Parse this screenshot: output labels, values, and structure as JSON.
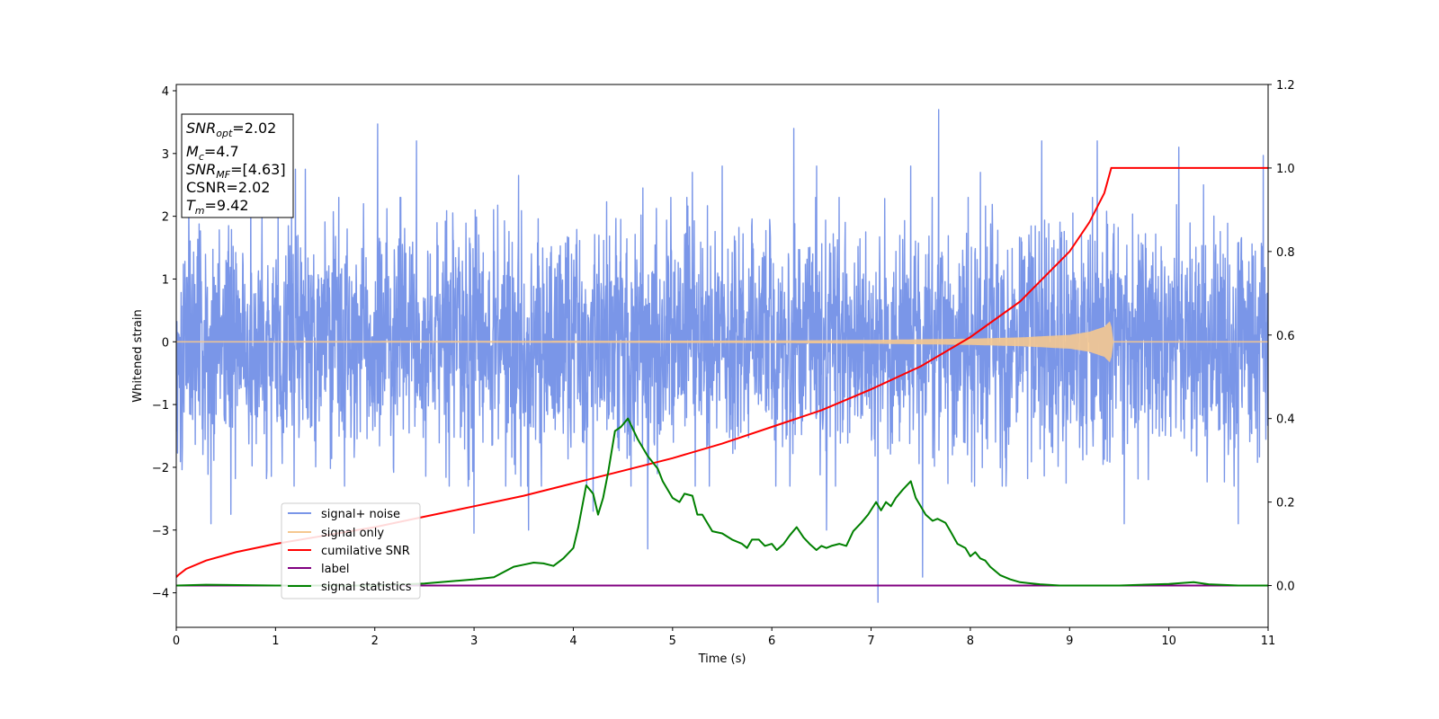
{
  "chart_data": {
    "type": "line",
    "title": "",
    "xlabel": "Time (s)",
    "ylabel": "Whitened strain",
    "xlim": [
      0,
      11
    ],
    "ylim": [
      -4.55,
      4.1
    ],
    "y2lim": [
      -0.1,
      1.2
    ],
    "x_ticks": [
      "0",
      "1",
      "2",
      "3",
      "4",
      "5",
      "6",
      "7",
      "8",
      "9",
      "10",
      "11"
    ],
    "y_ticks": [
      "−4",
      "−3",
      "−2",
      "−1",
      "0",
      "1",
      "2",
      "3",
      "4"
    ],
    "y2_ticks": [
      "0.0",
      "0.2",
      "0.4",
      "0.6",
      "0.8",
      "1.0",
      "1.2"
    ],
    "grid": false,
    "legend_position": "lower-left",
    "stats_box": {
      "snr_opt": {
        "base": "SNR",
        "sub": "opt",
        "value": "=2.02"
      },
      "mc": {
        "base": "M",
        "sub": "c",
        "value": "=4.7"
      },
      "snr_mf": {
        "base": "SNR",
        "sub": "MF",
        "value": "=[4.63]"
      },
      "csnr": {
        "text": "CSNR=2.02"
      },
      "tm": {
        "base": "T",
        "sub": "m",
        "value": "=9.42"
      }
    },
    "series": [
      {
        "name": "signal+ noise",
        "axis": "left",
        "color": "#7a96e8",
        "typical_amplitude": 1.4,
        "peaks": [
          [
            0.35,
            -2.9
          ],
          [
            0.55,
            -2.75
          ],
          [
            0.75,
            2.95
          ],
          [
            1.2,
            2.75
          ],
          [
            1.3,
            2.75
          ],
          [
            2.03,
            3.47
          ],
          [
            2.42,
            3.2
          ],
          [
            3.0,
            -3.05
          ],
          [
            3.45,
            2.65
          ],
          [
            3.55,
            -3.0
          ],
          [
            4.2,
            -2.7
          ],
          [
            4.7,
            2.45
          ],
          [
            4.75,
            -3.3
          ],
          [
            5.2,
            2.7
          ],
          [
            5.5,
            2.8
          ],
          [
            6.22,
            3.4
          ],
          [
            6.45,
            2.8
          ],
          [
            6.55,
            -3.0
          ],
          [
            7.07,
            -4.15
          ],
          [
            7.4,
            2.8
          ],
          [
            7.68,
            3.7
          ],
          [
            7.52,
            -3.75
          ],
          [
            8.1,
            2.7
          ],
          [
            8.72,
            3.2
          ],
          [
            9.28,
            3.2
          ],
          [
            9.55,
            -2.9
          ],
          [
            10.1,
            3.1
          ],
          [
            10.35,
            2.5
          ],
          [
            10.7,
            -2.9
          ],
          [
            10.95,
            2.97
          ]
        ]
      },
      {
        "name": "signal only",
        "axis": "left",
        "color": "#f5c890",
        "envelope": [
          [
            0,
            0.01
          ],
          [
            6.0,
            0.02
          ],
          [
            7.0,
            0.03
          ],
          [
            8.0,
            0.05
          ],
          [
            8.5,
            0.07
          ],
          [
            9.0,
            0.11
          ],
          [
            9.2,
            0.16
          ],
          [
            9.35,
            0.24
          ],
          [
            9.42,
            0.35
          ],
          [
            9.43,
            0.0
          ],
          [
            11,
            0.0
          ]
        ]
      },
      {
        "name": "cumilative SNR",
        "axis": "right",
        "color": "#ff0000",
        "x": [
          0,
          0.02,
          0.1,
          0.3,
          0.6,
          1,
          1.5,
          2,
          2.5,
          3,
          3.5,
          4,
          4.5,
          5,
          5.5,
          6,
          6.5,
          7,
          7.5,
          8,
          8.5,
          9,
          9.2,
          9.35,
          9.42,
          11
        ],
        "y": [
          0.02,
          0.025,
          0.04,
          0.06,
          0.08,
          0.1,
          0.12,
          0.14,
          0.165,
          0.19,
          0.215,
          0.245,
          0.275,
          0.305,
          0.34,
          0.38,
          0.42,
          0.47,
          0.525,
          0.595,
          0.68,
          0.8,
          0.87,
          0.94,
          1.0,
          1.0
        ]
      },
      {
        "name": "label",
        "axis": "right",
        "color": "#800080",
        "x": [
          0,
          11
        ],
        "y": [
          0,
          0
        ]
      },
      {
        "name": "signal statistics",
        "axis": "right",
        "color": "#008000",
        "x": [
          0,
          0.3,
          1,
          2,
          2.5,
          3,
          3.2,
          3.4,
          3.5,
          3.6,
          3.7,
          3.8,
          3.9,
          4.0,
          4.05,
          4.13,
          4.2,
          4.25,
          4.3,
          4.35,
          4.42,
          4.48,
          4.55,
          4.65,
          4.75,
          4.85,
          4.9,
          5.0,
          5.07,
          5.12,
          5.2,
          5.25,
          5.3,
          5.4,
          5.5,
          5.6,
          5.7,
          5.75,
          5.8,
          5.87,
          5.93,
          6.0,
          6.05,
          6.12,
          6.18,
          6.25,
          6.32,
          6.38,
          6.45,
          6.5,
          6.55,
          6.6,
          6.68,
          6.75,
          6.82,
          6.9,
          6.97,
          7.05,
          7.1,
          7.15,
          7.2,
          7.25,
          7.32,
          7.4,
          7.45,
          7.5,
          7.55,
          7.62,
          7.67,
          7.75,
          7.8,
          7.87,
          7.95,
          8.0,
          8.05,
          8.1,
          8.15,
          8.2,
          8.3,
          8.4,
          8.5,
          8.7,
          8.9,
          9.5,
          10.0,
          10.25,
          10.4,
          10.7,
          11
        ],
        "y": [
          0,
          0.002,
          0.0,
          0.0,
          0.005,
          0.015,
          0.02,
          0.045,
          0.05,
          0.055,
          0.053,
          0.047,
          0.065,
          0.09,
          0.14,
          0.24,
          0.22,
          0.17,
          0.21,
          0.27,
          0.37,
          0.38,
          0.4,
          0.35,
          0.31,
          0.28,
          0.25,
          0.21,
          0.2,
          0.22,
          0.215,
          0.17,
          0.17,
          0.13,
          0.125,
          0.11,
          0.1,
          0.09,
          0.11,
          0.11,
          0.095,
          0.1,
          0.085,
          0.1,
          0.12,
          0.14,
          0.115,
          0.1,
          0.085,
          0.095,
          0.09,
          0.095,
          0.1,
          0.095,
          0.13,
          0.15,
          0.17,
          0.2,
          0.18,
          0.2,
          0.19,
          0.21,
          0.23,
          0.25,
          0.21,
          0.19,
          0.17,
          0.155,
          0.16,
          0.15,
          0.13,
          0.1,
          0.09,
          0.07,
          0.08,
          0.065,
          0.06,
          0.045,
          0.025,
          0.015,
          0.008,
          0.003,
          0.0,
          0.0,
          0.004,
          0.008,
          0.003,
          0.0,
          0.0
        ]
      }
    ]
  }
}
